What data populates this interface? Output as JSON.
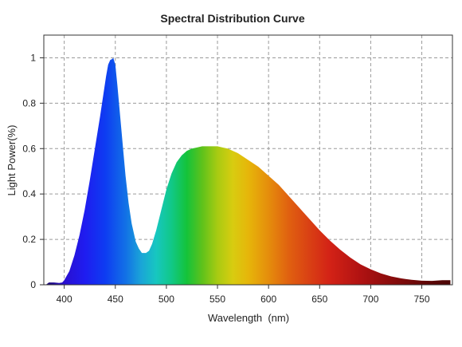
{
  "chart_data": {
    "type": "area",
    "title": "Spectral Distribution Curve",
    "xlabel": "Wavelength  (nm)",
    "ylabel": "Light Power(%)",
    "xlim": [
      380,
      780
    ],
    "ylim": [
      0,
      1.1
    ],
    "x_ticks": [
      400,
      450,
      500,
      550,
      600,
      650,
      700,
      750
    ],
    "y_ticks": [
      0,
      0.2,
      0.4,
      0.6,
      0.8,
      1
    ],
    "y_tick_labels": [
      "0",
      "0.2",
      "0.4",
      "0.6",
      "0.8",
      "1"
    ],
    "grid": true,
    "fill": "visible-spectrum gradient",
    "series": [
      {
        "x": [
          382,
          385,
          390,
          395,
          398,
          400,
          405,
          410,
          415,
          420,
          425,
          430,
          435,
          438,
          441,
          443,
          445,
          447,
          448,
          450,
          452,
          455,
          458,
          460,
          463,
          466,
          470,
          473,
          476,
          480,
          483,
          486,
          490,
          495,
          500,
          505,
          510,
          515,
          520,
          525,
          530,
          535,
          540,
          545,
          550,
          555,
          560,
          565,
          570,
          575,
          580,
          590,
          600,
          610,
          620,
          630,
          640,
          650,
          660,
          670,
          680,
          690,
          700,
          710,
          720,
          730,
          740,
          750,
          760,
          770,
          778
        ],
        "y": [
          0.0,
          0.01,
          0.01,
          0.008,
          0.01,
          0.02,
          0.06,
          0.13,
          0.22,
          0.33,
          0.46,
          0.6,
          0.74,
          0.83,
          0.92,
          0.97,
          0.99,
          0.995,
          1.0,
          0.97,
          0.88,
          0.73,
          0.58,
          0.48,
          0.36,
          0.27,
          0.19,
          0.16,
          0.14,
          0.14,
          0.15,
          0.18,
          0.24,
          0.33,
          0.42,
          0.49,
          0.54,
          0.57,
          0.59,
          0.6,
          0.605,
          0.61,
          0.61,
          0.61,
          0.61,
          0.605,
          0.6,
          0.59,
          0.58,
          0.565,
          0.55,
          0.52,
          0.48,
          0.44,
          0.39,
          0.34,
          0.29,
          0.24,
          0.195,
          0.155,
          0.12,
          0.09,
          0.068,
          0.05,
          0.037,
          0.028,
          0.022,
          0.018,
          0.017,
          0.02,
          0.02
        ]
      }
    ]
  }
}
